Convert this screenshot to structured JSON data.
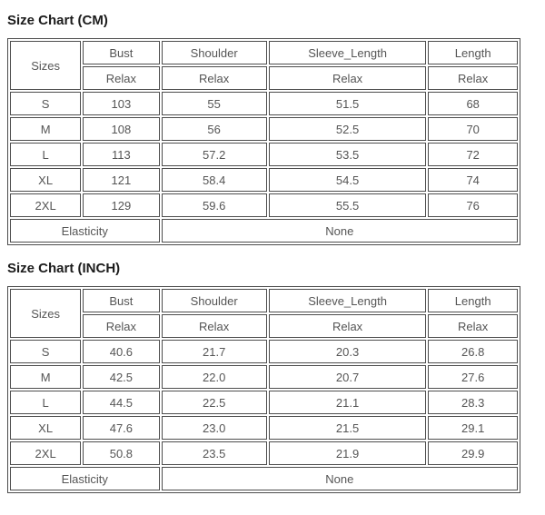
{
  "colors": {
    "background": "#ffffff",
    "table_border": "#4d4d4d",
    "cell_text": "#555555",
    "title_text": "#1c1c1c"
  },
  "tables": [
    {
      "title": "Size Chart (CM)",
      "columns": [
        "Sizes",
        "Bust",
        "Shoulder",
        "Sleeve_Length",
        "Length"
      ],
      "fit": [
        "Relax",
        "Relax",
        "Relax",
        "Relax"
      ],
      "rows": [
        {
          "size": "S",
          "values": [
            "103",
            "55",
            "51.5",
            "68"
          ]
        },
        {
          "size": "M",
          "values": [
            "108",
            "56",
            "52.5",
            "70"
          ]
        },
        {
          "size": "L",
          "values": [
            "113",
            "57.2",
            "53.5",
            "72"
          ]
        },
        {
          "size": "XL",
          "values": [
            "121",
            "58.4",
            "54.5",
            "74"
          ]
        },
        {
          "size": "2XL",
          "values": [
            "129",
            "59.6",
            "55.5",
            "76"
          ]
        }
      ],
      "footer": {
        "label": "Elasticity",
        "value": "None"
      }
    },
    {
      "title": "Size Chart (INCH)",
      "columns": [
        "Sizes",
        "Bust",
        "Shoulder",
        "Sleeve_Length",
        "Length"
      ],
      "fit": [
        "Relax",
        "Relax",
        "Relax",
        "Relax"
      ],
      "rows": [
        {
          "size": "S",
          "values": [
            "40.6",
            "21.7",
            "20.3",
            "26.8"
          ]
        },
        {
          "size": "M",
          "values": [
            "42.5",
            "22.0",
            "20.7",
            "27.6"
          ]
        },
        {
          "size": "L",
          "values": [
            "44.5",
            "22.5",
            "21.1",
            "28.3"
          ]
        },
        {
          "size": "XL",
          "values": [
            "47.6",
            "23.0",
            "21.5",
            "29.1"
          ]
        },
        {
          "size": "2XL",
          "values": [
            "50.8",
            "23.5",
            "21.9",
            "29.9"
          ]
        }
      ],
      "footer": {
        "label": "Elasticity",
        "value": "None"
      }
    }
  ]
}
